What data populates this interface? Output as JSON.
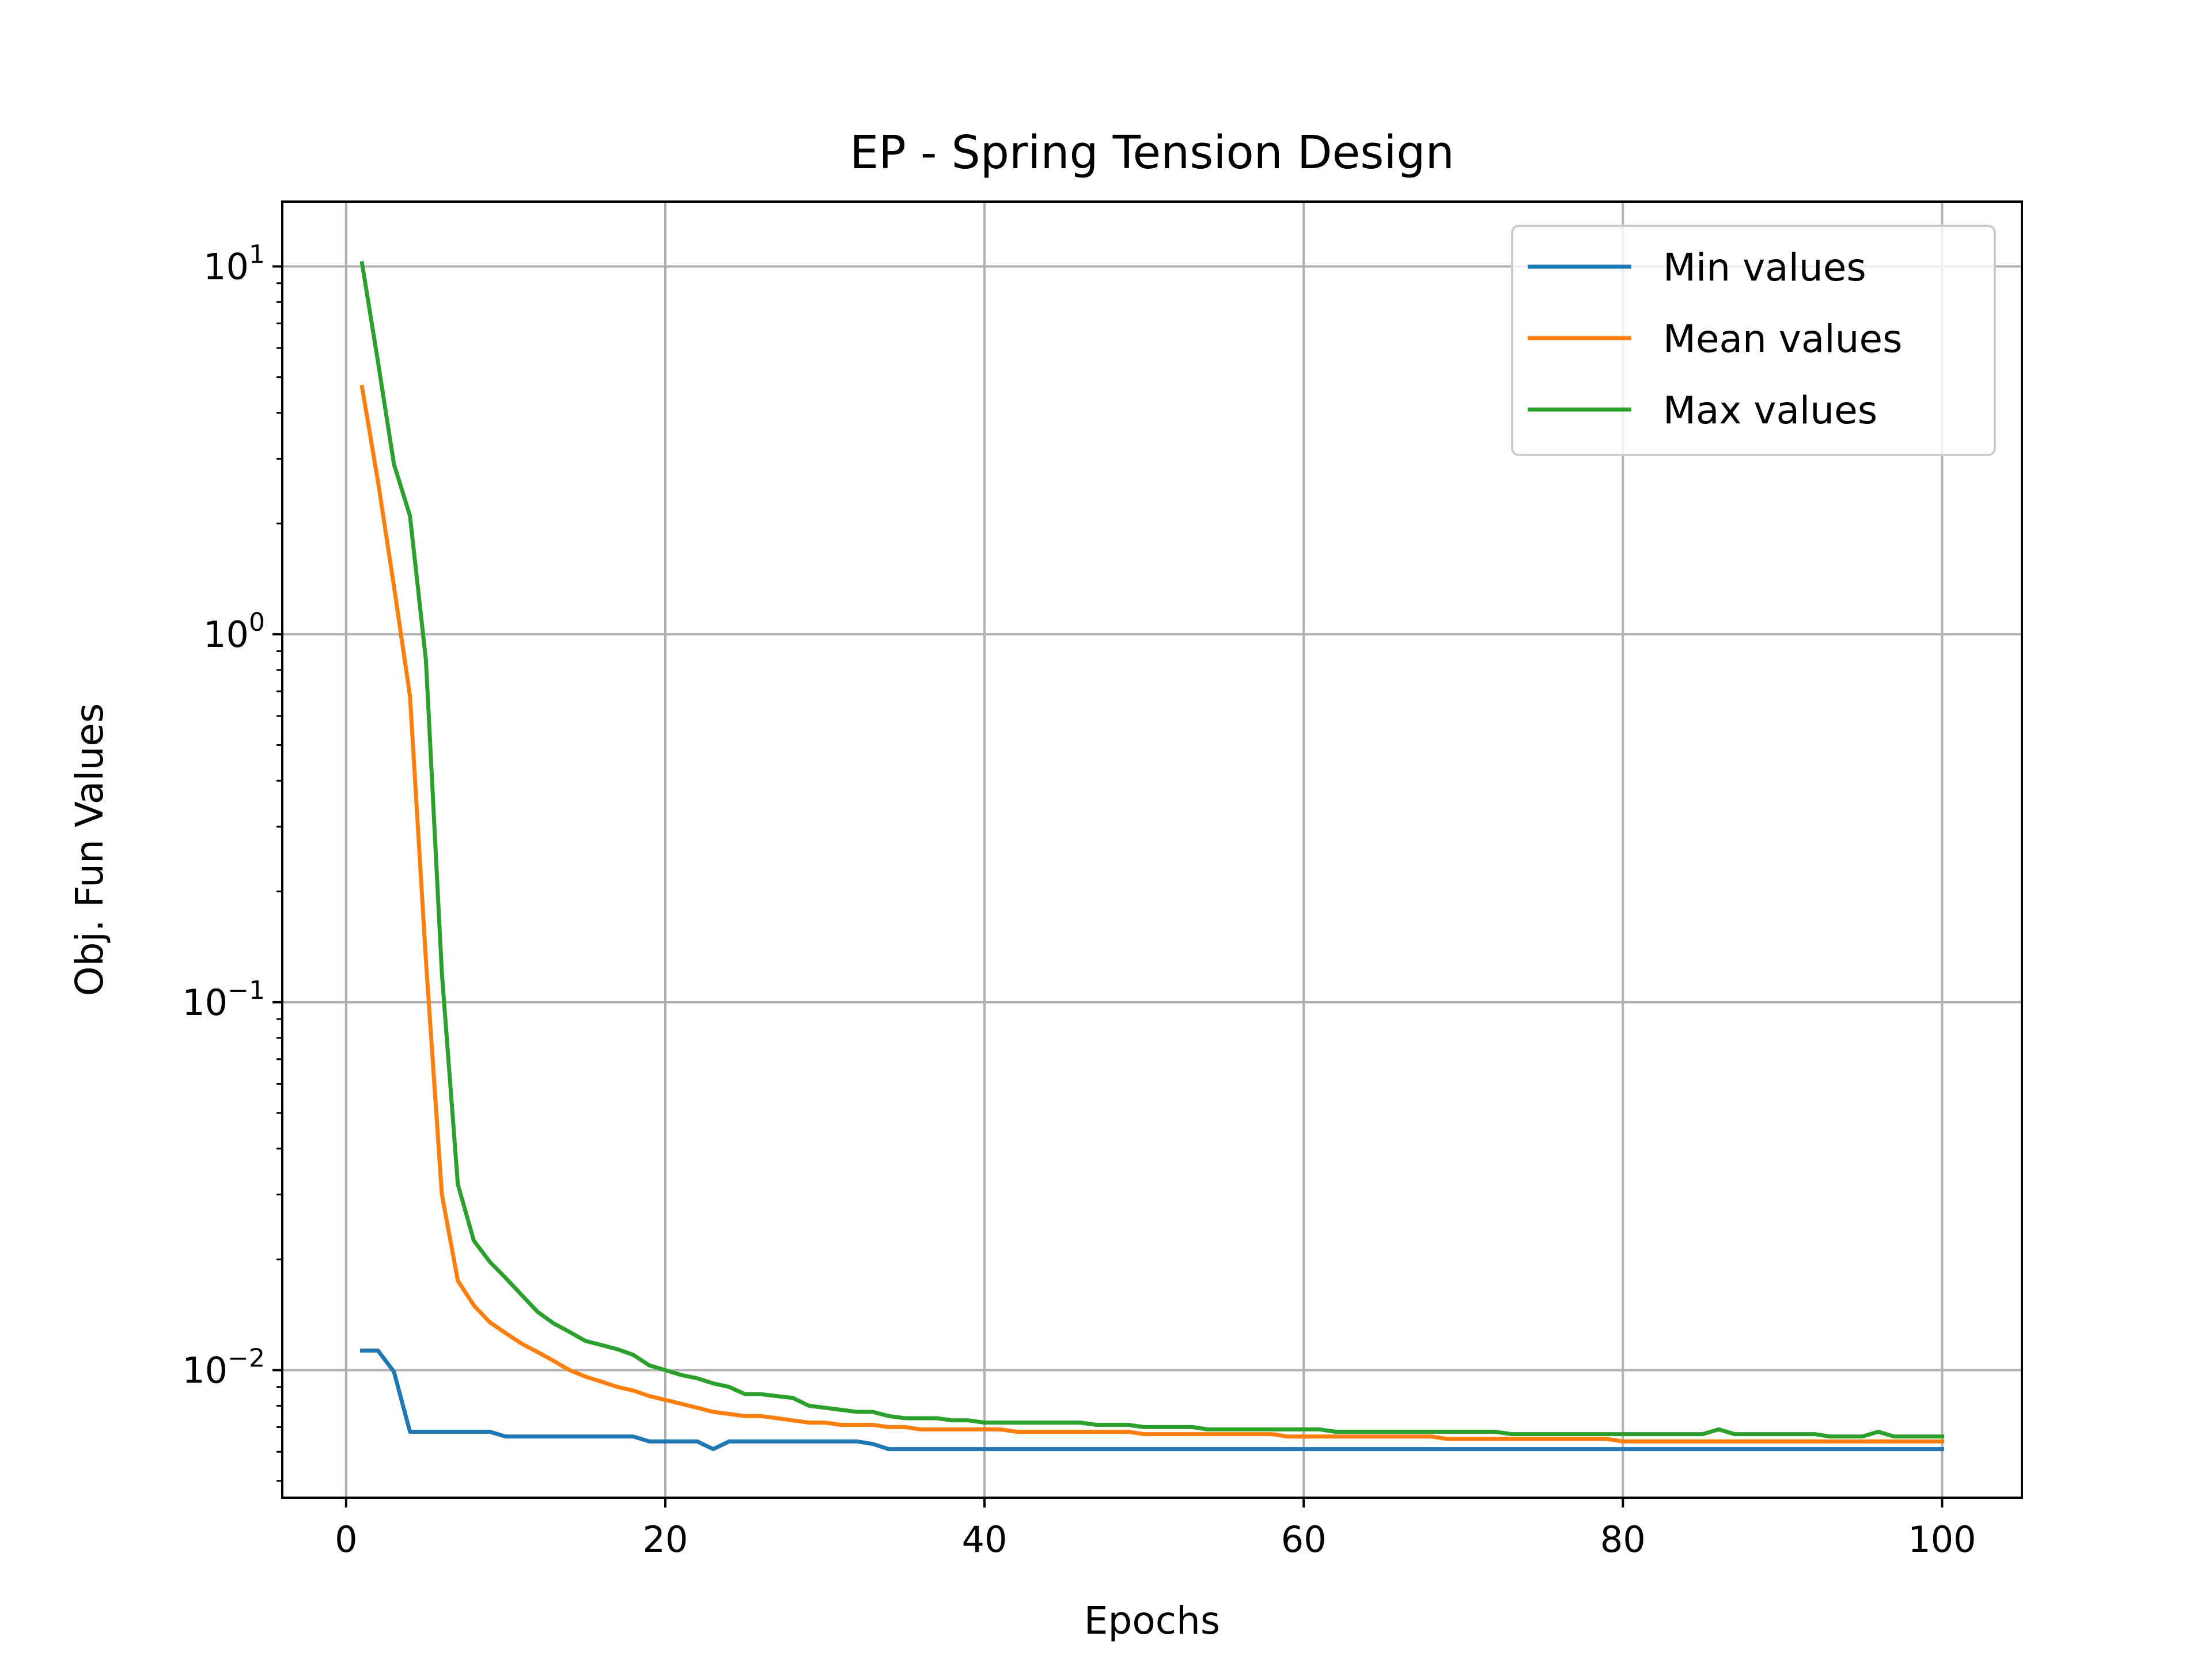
{
  "chart_data": {
    "type": "line",
    "title": "EP - Spring Tension Design",
    "xlabel": "Epochs",
    "ylabel": "Obj. Fun Values",
    "yscale": "log",
    "xlim": [
      -4,
      105
    ],
    "ylim": [
      0.0045,
      15
    ],
    "xticks": [
      0,
      20,
      40,
      60,
      80,
      100
    ],
    "yticks": [
      {
        "value": 10,
        "base": "10",
        "exp": "1"
      },
      {
        "value": 1,
        "base": "10",
        "exp": "0"
      },
      {
        "value": 0.1,
        "base": "10",
        "exp": "−1"
      },
      {
        "value": 0.01,
        "base": "10",
        "exp": "−2"
      }
    ],
    "grid": true,
    "legend_position": "top-right",
    "x": [
      1,
      2,
      3,
      4,
      5,
      6,
      7,
      8,
      9,
      10,
      11,
      12,
      13,
      14,
      15,
      16,
      17,
      18,
      19,
      20,
      21,
      22,
      23,
      24,
      25,
      26,
      27,
      28,
      29,
      30,
      31,
      32,
      33,
      34,
      35,
      36,
      37,
      38,
      39,
      40,
      41,
      42,
      43,
      44,
      45,
      46,
      47,
      48,
      49,
      50,
      51,
      52,
      53,
      54,
      55,
      56,
      57,
      58,
      59,
      60,
      61,
      62,
      63,
      64,
      65,
      66,
      67,
      68,
      69,
      70,
      71,
      72,
      73,
      74,
      75,
      76,
      77,
      78,
      79,
      80,
      81,
      82,
      83,
      84,
      85,
      86,
      87,
      88,
      89,
      90,
      91,
      92,
      93,
      94,
      95,
      96,
      97,
      98,
      99,
      100
    ],
    "series": [
      {
        "name": "Min values",
        "color": "#1f77b4",
        "values": [
          0.0113,
          0.0113,
          0.0099,
          0.0068,
          0.0068,
          0.0068,
          0.0068,
          0.0068,
          0.0068,
          0.0066,
          0.0066,
          0.0066,
          0.0066,
          0.0066,
          0.0066,
          0.0066,
          0.0066,
          0.0066,
          0.0064,
          0.0064,
          0.0064,
          0.0064,
          0.0061,
          0.0064,
          0.0064,
          0.0064,
          0.0064,
          0.0064,
          0.0064,
          0.0064,
          0.0064,
          0.0064,
          0.0063,
          0.0061,
          0.0061,
          0.0061,
          0.0061,
          0.0061,
          0.0061,
          0.0061,
          0.0061,
          0.0061,
          0.0061,
          0.0061,
          0.0061,
          0.0061,
          0.0061,
          0.0061,
          0.0061,
          0.0061,
          0.0061,
          0.0061,
          0.0061,
          0.0061,
          0.0061,
          0.0061,
          0.0061,
          0.0061,
          0.0061,
          0.0061,
          0.0061,
          0.0061,
          0.0061,
          0.0061,
          0.0061,
          0.0061,
          0.0061,
          0.0061,
          0.0061,
          0.0061,
          0.0061,
          0.0061,
          0.0061,
          0.0061,
          0.0061,
          0.0061,
          0.0061,
          0.0061,
          0.0061,
          0.0061,
          0.0061,
          0.0061,
          0.0061,
          0.0061,
          0.0061,
          0.0061,
          0.0061,
          0.0061,
          0.0061,
          0.0061,
          0.0061,
          0.0061,
          0.0061,
          0.0061,
          0.0061,
          0.0061,
          0.0061,
          0.0061,
          0.0061,
          0.0061
        ]
      },
      {
        "name": "Mean values",
        "color": "#ff7f0e",
        "values": [
          4.7,
          2.6,
          1.35,
          0.68,
          0.13,
          0.03,
          0.0175,
          0.015,
          0.0135,
          0.0126,
          0.0118,
          0.0112,
          0.0106,
          0.01,
          0.0096,
          0.0093,
          0.009,
          0.0088,
          0.0085,
          0.0083,
          0.0081,
          0.0079,
          0.0077,
          0.0076,
          0.0075,
          0.0075,
          0.0074,
          0.0073,
          0.0072,
          0.0072,
          0.0071,
          0.0071,
          0.0071,
          0.007,
          0.007,
          0.0069,
          0.0069,
          0.0069,
          0.0069,
          0.0069,
          0.0069,
          0.0068,
          0.0068,
          0.0068,
          0.0068,
          0.0068,
          0.0068,
          0.0068,
          0.0068,
          0.0067,
          0.0067,
          0.0067,
          0.0067,
          0.0067,
          0.0067,
          0.0067,
          0.0067,
          0.0067,
          0.0066,
          0.0066,
          0.0066,
          0.0066,
          0.0066,
          0.0066,
          0.0066,
          0.0066,
          0.0066,
          0.0066,
          0.0065,
          0.0065,
          0.0065,
          0.0065,
          0.0065,
          0.0065,
          0.0065,
          0.0065,
          0.0065,
          0.0065,
          0.0065,
          0.0064,
          0.0064,
          0.0064,
          0.0064,
          0.0064,
          0.0064,
          0.0064,
          0.0064,
          0.0064,
          0.0064,
          0.0064,
          0.0064,
          0.0064,
          0.0064,
          0.0064,
          0.0064,
          0.0064,
          0.0064,
          0.0064,
          0.0064,
          0.0064
        ]
      },
      {
        "name": "Max values",
        "color": "#2ca02c",
        "values": [
          10.2,
          5.5,
          2.9,
          2.1,
          0.85,
          0.12,
          0.032,
          0.0225,
          0.0197,
          0.0178,
          0.016,
          0.0144,
          0.0134,
          0.0127,
          0.012,
          0.0117,
          0.0114,
          0.011,
          0.0103,
          0.01,
          0.0097,
          0.0095,
          0.0092,
          0.009,
          0.0086,
          0.0086,
          0.0085,
          0.0084,
          0.008,
          0.0079,
          0.0078,
          0.0077,
          0.0077,
          0.0075,
          0.0074,
          0.0074,
          0.0074,
          0.0073,
          0.0073,
          0.0072,
          0.0072,
          0.0072,
          0.0072,
          0.0072,
          0.0072,
          0.0072,
          0.0071,
          0.0071,
          0.0071,
          0.007,
          0.007,
          0.007,
          0.007,
          0.0069,
          0.0069,
          0.0069,
          0.0069,
          0.0069,
          0.0069,
          0.0069,
          0.0069,
          0.0068,
          0.0068,
          0.0068,
          0.0068,
          0.0068,
          0.0068,
          0.0068,
          0.0068,
          0.0068,
          0.0068,
          0.0068,
          0.0067,
          0.0067,
          0.0067,
          0.0067,
          0.0067,
          0.0067,
          0.0067,
          0.0067,
          0.0067,
          0.0067,
          0.0067,
          0.0067,
          0.0067,
          0.0069,
          0.0067,
          0.0067,
          0.0067,
          0.0067,
          0.0067,
          0.0067,
          0.0066,
          0.0066,
          0.0066,
          0.0068,
          0.0066,
          0.0066,
          0.0066,
          0.0066
        ]
      }
    ]
  }
}
